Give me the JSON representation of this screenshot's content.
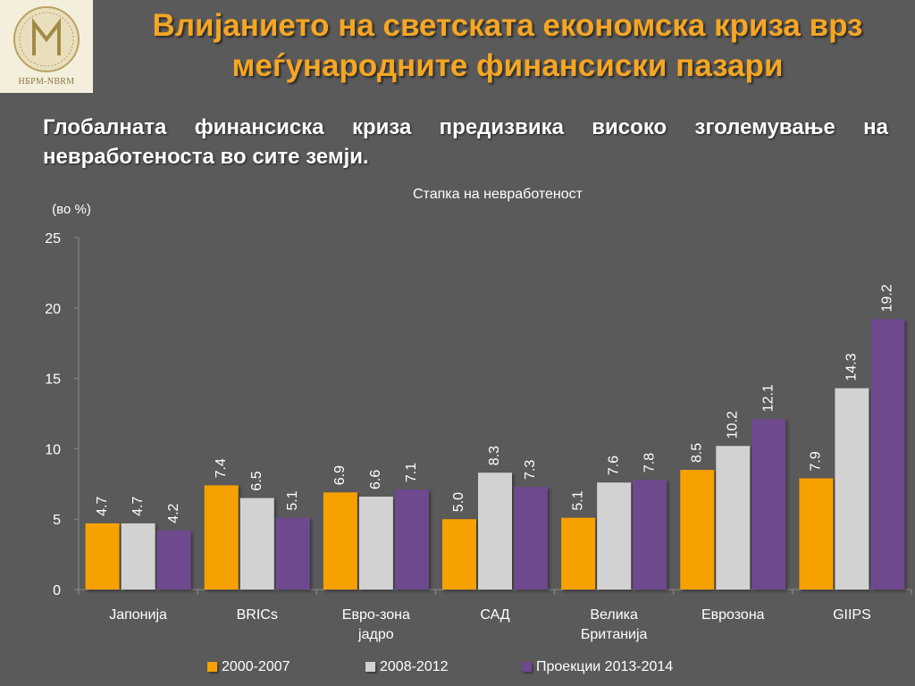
{
  "logo": {
    "text": "НБРМ-NBRM"
  },
  "slide": {
    "title": "Влијанието на светската економска криза врз меѓународните финансиски пазари",
    "subtitle": "Глобалната финансиска криза предизвика високо зголемување на невработеноста во сите земји."
  },
  "chart_data": {
    "type": "bar",
    "title": "Стапка на невработеност",
    "ylabel": "(во %)",
    "xlabel": "",
    "ylim": [
      0,
      25
    ],
    "yticks": [
      0,
      5,
      10,
      15,
      20,
      25
    ],
    "categories": [
      [
        "Јапонија"
      ],
      [
        "BRICs"
      ],
      [
        "Евро-зона",
        "јадро"
      ],
      [
        "САД"
      ],
      [
        "Велика",
        "Британија"
      ],
      [
        "Еврозона"
      ],
      [
        "GIIPS"
      ]
    ],
    "series": [
      {
        "name": "2000-2007",
        "color": "#f7a100",
        "values": [
          4.7,
          7.4,
          6.9,
          5.0,
          5.1,
          8.5,
          7.9
        ]
      },
      {
        "name": "2008-2012",
        "color": "#d2d2d2",
        "values": [
          4.7,
          6.5,
          6.6,
          8.3,
          7.6,
          10.2,
          14.3
        ]
      },
      {
        "name": "Проекции 2013-2014",
        "color": "#6e4a8e",
        "values": [
          4.2,
          5.1,
          7.1,
          7.3,
          7.8,
          12.1,
          19.2
        ]
      }
    ],
    "legend": "bottom",
    "grid": false
  }
}
